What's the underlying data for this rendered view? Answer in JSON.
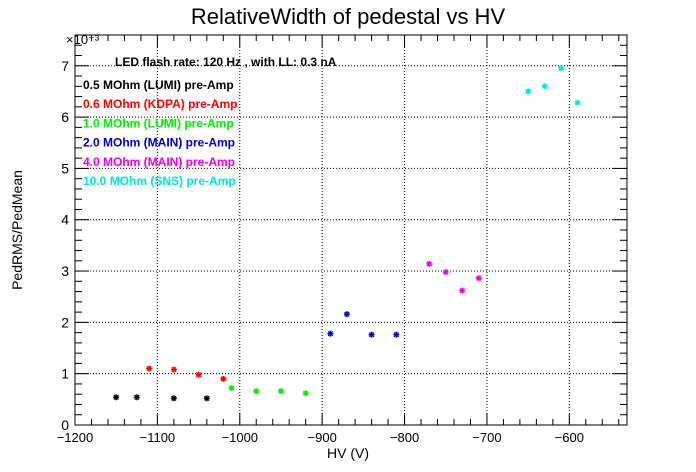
{
  "chart_data": {
    "type": "scatter",
    "title": "RelativeWidth of pedestal vs HV",
    "xlabel": "HV (V)",
    "ylabel": "PedRMS/PedMean",
    "y_exponent_label": "×10⁻³",
    "xlim": [
      -1200,
      -530
    ],
    "ylim": [
      0,
      7.6
    ],
    "xticks": [
      -1200,
      -1100,
      -1000,
      -900,
      -800,
      -700,
      -600
    ],
    "yticks": [
      0,
      1,
      2,
      3,
      4,
      5,
      6,
      7
    ],
    "grid": true,
    "legend_placement": "top-left",
    "legend_header": "LED flash rate: 120 Hz , with LL: 0.3 nA",
    "series": [
      {
        "name": "0.5 MOhm (LUMI) pre-Amp",
        "color": "#000000",
        "x": [
          -1150,
          -1125,
          -1080,
          -1040
        ],
        "y": [
          0.54,
          0.54,
          0.52,
          0.52
        ]
      },
      {
        "name": "0.6 MOhm (KDPA) pre-Amp",
        "color": "#ff0000",
        "x": [
          -1110,
          -1080,
          -1050,
          -1020
        ],
        "y": [
          1.1,
          1.08,
          0.98,
          0.9
        ]
      },
      {
        "name": "1.0 MOhm (LUMI) pre-Amp",
        "color": "#00ee00",
        "x": [
          -1010,
          -980,
          -950,
          -920
        ],
        "y": [
          0.72,
          0.66,
          0.66,
          0.62
        ]
      },
      {
        "name": "2.0 MOhm (MAIN) pre-Amp",
        "color": "#0000cc",
        "x": [
          -890,
          -870,
          -840,
          -810
        ],
        "y": [
          1.78,
          2.16,
          1.76,
          1.76
        ]
      },
      {
        "name": "4.0 MOhm (MAIN) pre-Amp",
        "color": "#ee00ee",
        "x": [
          -770,
          -750,
          -730,
          -710
        ],
        "y": [
          3.14,
          2.98,
          2.62,
          2.86
        ]
      },
      {
        "name": "10.0 MOhm (SNS) pre-Amp",
        "color": "#00e5e5",
        "x": [
          -650,
          -630,
          -610,
          -590
        ],
        "y": [
          6.5,
          6.6,
          6.95,
          6.28
        ]
      }
    ]
  }
}
